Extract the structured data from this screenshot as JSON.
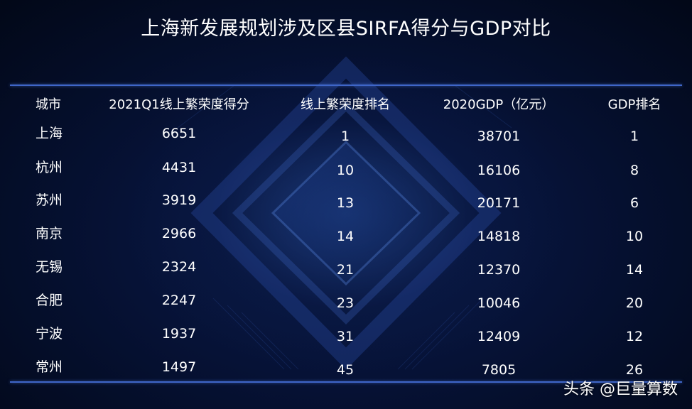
{
  "title": "上海新发展规划涉及区县SIRFA得分与GDP对比",
  "watermark": "头条 @巨量算数",
  "chart_data": {
    "type": "table",
    "columns": [
      "城市",
      "2021Q1线上繁荣度得分",
      "线上繁荣度排名",
      "2020GDP（亿元）",
      "GDP排名"
    ],
    "rows": [
      [
        "上海",
        "6651",
        "1",
        "38701",
        "1"
      ],
      [
        "杭州",
        "4431",
        "10",
        "16106",
        "8"
      ],
      [
        "苏州",
        "3919",
        "13",
        "20171",
        "6"
      ],
      [
        "南京",
        "2966",
        "14",
        "14818",
        "10"
      ],
      [
        "无锡",
        "2324",
        "21",
        "12370",
        "14"
      ],
      [
        "合肥",
        "2247",
        "23",
        "10046",
        "20"
      ],
      [
        "宁波",
        "1937",
        "31",
        "12409",
        "12"
      ],
      [
        "常州",
        "1497",
        "45",
        "7805",
        "26"
      ]
    ]
  },
  "colors": {
    "background": "#061236",
    "rule": "#3f66c8",
    "text": "#ffffff"
  }
}
